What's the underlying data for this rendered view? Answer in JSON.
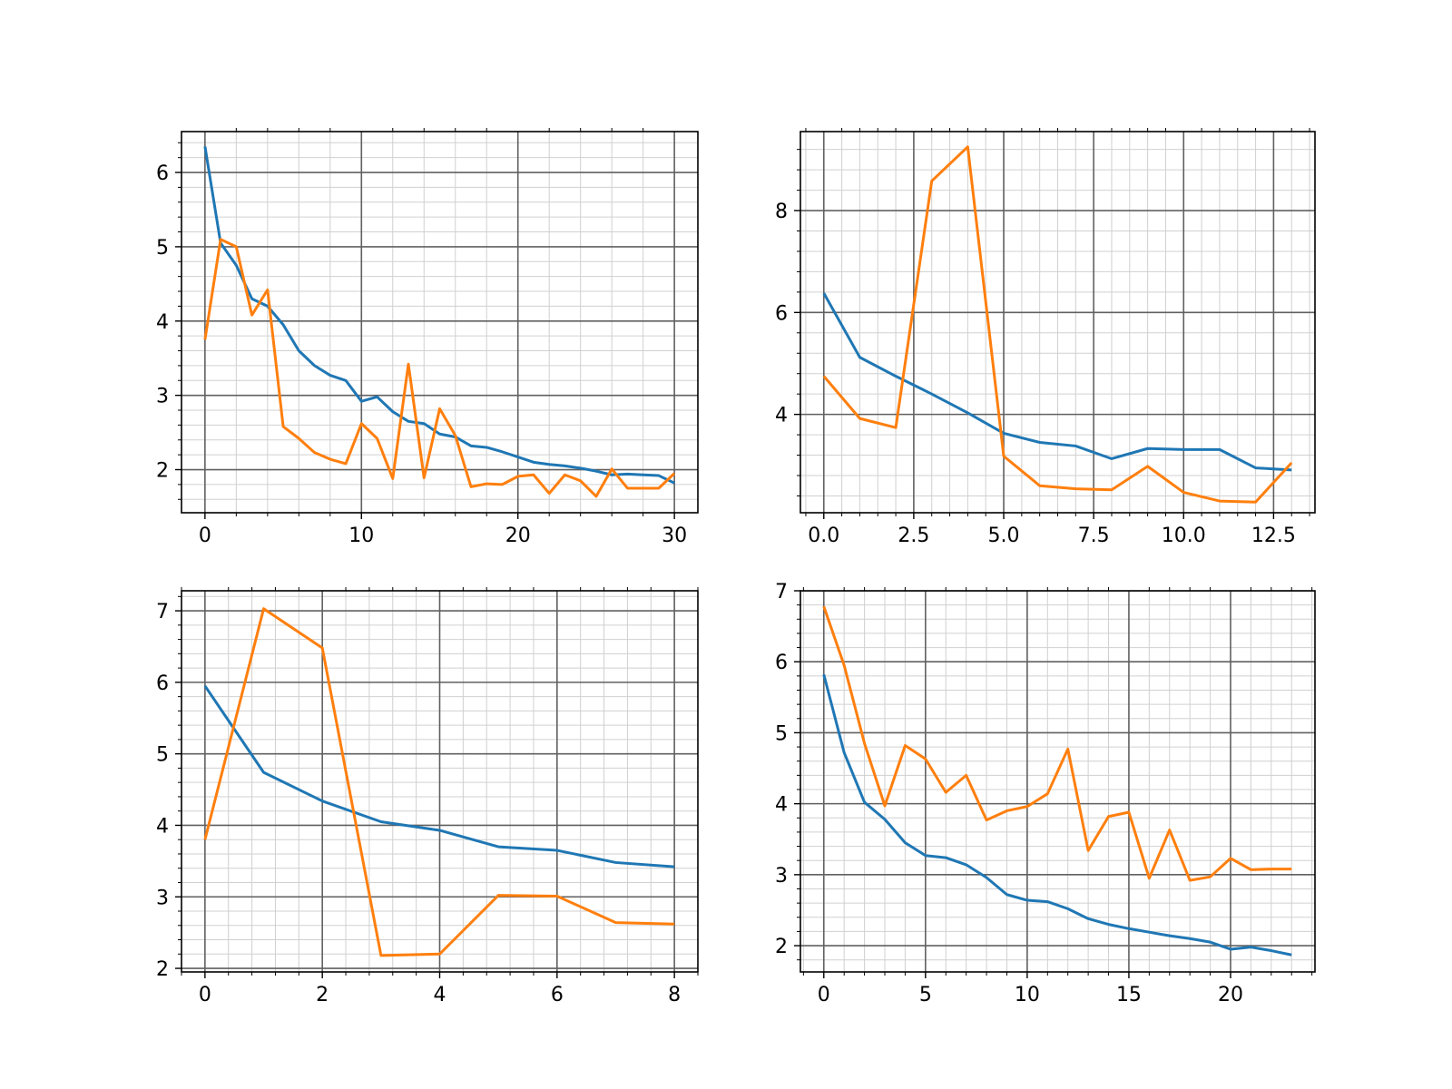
{
  "chart_data": [
    {
      "type": "line",
      "xlim": [
        -1.5,
        31.5
      ],
      "ylim": [
        1.42,
        6.55
      ],
      "xticks": [
        0,
        10,
        20,
        30
      ],
      "yticks": [
        2,
        3,
        4,
        5,
        6
      ],
      "grid": true,
      "series": [
        {
          "color": "#1f77b4",
          "x": [
            0,
            1,
            2,
            3,
            4,
            5,
            6,
            7,
            8,
            9,
            10,
            11,
            12,
            13,
            14,
            15,
            16,
            17,
            18,
            19,
            20,
            21,
            22,
            23,
            24,
            25,
            26,
            27,
            28,
            29,
            30
          ],
          "y": [
            6.35,
            5.05,
            4.75,
            4.3,
            4.2,
            3.95,
            3.6,
            3.4,
            3.27,
            3.2,
            2.92,
            2.98,
            2.78,
            2.65,
            2.62,
            2.48,
            2.44,
            2.32,
            2.3,
            2.24,
            2.17,
            2.1,
            2.07,
            2.05,
            2.02,
            1.98,
            1.93,
            1.94,
            1.93,
            1.92,
            1.82
          ]
        },
        {
          "color": "#ff7f0e",
          "x": [
            0,
            1,
            2,
            3,
            4,
            5,
            6,
            7,
            8,
            9,
            10,
            11,
            12,
            13,
            14,
            15,
            16,
            17,
            18,
            19,
            20,
            21,
            22,
            23,
            24,
            25,
            26,
            27,
            28,
            29,
            30
          ],
          "y": [
            3.75,
            5.1,
            5.0,
            4.08,
            4.42,
            2.58,
            2.42,
            2.23,
            2.14,
            2.08,
            2.62,
            2.42,
            1.88,
            3.42,
            1.89,
            2.82,
            2.46,
            1.77,
            1.81,
            1.8,
            1.91,
            1.93,
            1.68,
            1.93,
            1.85,
            1.64,
            2.01,
            1.75,
            1.75,
            1.75,
            1.95
          ]
        }
      ]
    },
    {
      "type": "line",
      "xlim": [
        -0.65,
        13.65
      ],
      "ylim": [
        2.07,
        9.55
      ],
      "xticks": [
        0,
        2.5,
        5,
        7.5,
        10,
        12.5
      ],
      "xtick_labels": [
        "0.0",
        "2.5",
        "5.0",
        "7.5",
        "10.0",
        "12.5"
      ],
      "yticks": [
        4,
        6,
        8
      ],
      "grid": true,
      "series": [
        {
          "color": "#1f77b4",
          "x": [
            0,
            1,
            2,
            3,
            4,
            5,
            6,
            7,
            8,
            9,
            10,
            11,
            12,
            13
          ],
          "y": [
            6.38,
            5.12,
            4.75,
            4.4,
            4.03,
            3.63,
            3.45,
            3.38,
            3.13,
            3.33,
            3.31,
            3.31,
            2.95,
            2.91
          ]
        },
        {
          "color": "#ff7f0e",
          "x": [
            0,
            1,
            2,
            3,
            4,
            5,
            6,
            7,
            8,
            9,
            10,
            11,
            12,
            13
          ],
          "y": [
            4.75,
            3.92,
            3.74,
            8.58,
            9.25,
            3.18,
            2.6,
            2.54,
            2.52,
            2.98,
            2.47,
            2.3,
            2.28,
            3.05
          ]
        }
      ]
    },
    {
      "type": "line",
      "xlim": [
        -0.4,
        8.4
      ],
      "ylim": [
        1.95,
        7.28
      ],
      "xticks": [
        0,
        2,
        4,
        6,
        8
      ],
      "yticks": [
        2,
        3,
        4,
        5,
        6,
        7
      ],
      "grid": true,
      "series": [
        {
          "color": "#1f77b4",
          "x": [
            0,
            1,
            2,
            3,
            4,
            5,
            6,
            7,
            8
          ],
          "y": [
            5.95,
            4.74,
            4.34,
            4.05,
            3.93,
            3.7,
            3.65,
            3.48,
            3.42
          ]
        },
        {
          "color": "#ff7f0e",
          "x": [
            0,
            1,
            2,
            3,
            4,
            5,
            6,
            7,
            8
          ],
          "y": [
            3.8,
            7.03,
            6.48,
            2.18,
            2.2,
            3.02,
            3.01,
            2.64,
            2.62
          ]
        }
      ]
    },
    {
      "type": "line",
      "xlim": [
        -1.15,
        24.15
      ],
      "ylim": [
        1.63,
        7.0
      ],
      "xticks": [
        0,
        5,
        10,
        15,
        20
      ],
      "yticks": [
        2,
        3,
        4,
        5,
        6,
        7
      ],
      "grid": true,
      "series": [
        {
          "color": "#1f77b4",
          "x": [
            0,
            1,
            2,
            3,
            4,
            5,
            6,
            7,
            8,
            9,
            10,
            11,
            12,
            13,
            14,
            15,
            16,
            17,
            18,
            19,
            20,
            21,
            22,
            23
          ],
          "y": [
            5.82,
            4.72,
            4.02,
            3.78,
            3.45,
            3.27,
            3.24,
            3.14,
            2.96,
            2.72,
            2.64,
            2.62,
            2.52,
            2.38,
            2.3,
            2.24,
            2.19,
            2.14,
            2.1,
            2.05,
            1.95,
            1.98,
            1.93,
            1.87
          ]
        },
        {
          "color": "#ff7f0e",
          "x": [
            0,
            1,
            2,
            3,
            4,
            5,
            6,
            7,
            8,
            9,
            10,
            11,
            12,
            13,
            14,
            15,
            16,
            17,
            18,
            19,
            20,
            21,
            22,
            23
          ],
          "y": [
            6.78,
            5.95,
            4.85,
            3.97,
            4.82,
            4.63,
            4.16,
            4.4,
            3.77,
            3.9,
            3.96,
            4.14,
            4.77,
            3.34,
            3.82,
            3.88,
            2.95,
            3.63,
            2.92,
            2.97,
            3.23,
            3.07,
            3.08,
            3.08
          ]
        }
      ]
    }
  ]
}
